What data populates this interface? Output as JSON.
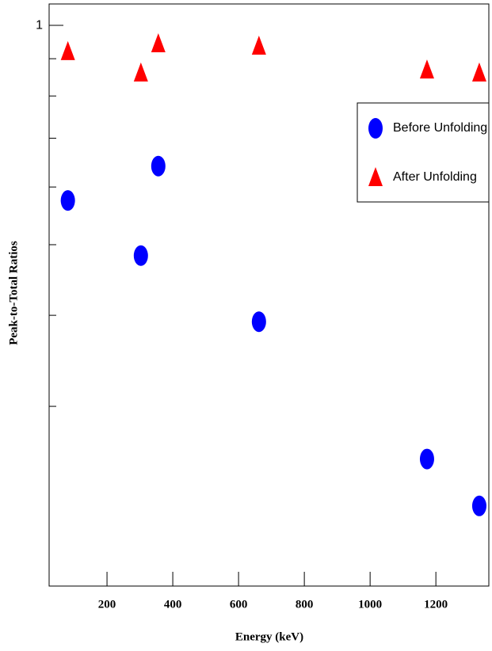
{
  "chart_data": {
    "type": "scatter",
    "x_label": "Energy (keV)",
    "y_label": "Peak-to-Total Ratios",
    "xlim": [
      24,
      1361
    ],
    "ylim": [
      0.17,
      1.07
    ],
    "log_y": true,
    "xticks": [
      200,
      400,
      600,
      800,
      1000,
      1200
    ],
    "yticks": [
      1
    ],
    "yminor_ticks": [
      0.3,
      0.4,
      0.5,
      0.6,
      0.7,
      0.8,
      0.9
    ],
    "legend": "upper right",
    "series": [
      {
        "name": "Before Unfolding",
        "color": "#0000ff",
        "marker": "circle",
        "x": [
          81,
          303,
          356,
          662,
          1173,
          1332
        ],
        "values": [
          0.575,
          0.483,
          0.641,
          0.392,
          0.254,
          0.219
        ]
      },
      {
        "name": "After Unfolding",
        "color": "#ff0000",
        "marker": "triangle",
        "x": [
          81,
          303,
          356,
          662,
          1173,
          1332
        ],
        "values": [
          0.921,
          0.861,
          0.944,
          0.937,
          0.869,
          0.861
        ]
      }
    ]
  }
}
